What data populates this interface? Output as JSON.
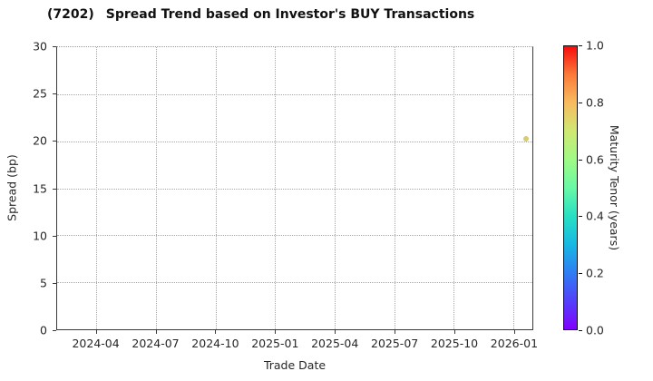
{
  "title": {
    "ticker": "(7202)",
    "text": "Spread Trend based on Investor's BUY Transactions"
  },
  "axes": {
    "x_label": "Trade Date",
    "y_label": "Spread (bp)"
  },
  "colorbar": {
    "label": "Maturity Tenor (years)",
    "colormap": "rainbow",
    "tick_labels": [
      "0.0",
      "0.2",
      "0.4",
      "0.6",
      "0.8",
      "1.0"
    ],
    "gradient_stops": [
      "#8000fe 0%",
      "#5340fb 10%",
      "#2f7ef3 20%",
      "#17b8e2 30%",
      "#27e0c4 40%",
      "#69f9a5 50%",
      "#9ffa85 60%",
      "#cfe873 70%",
      "#f8bc60 80%",
      "#fb7a39 90%",
      "#f60b0c 100%"
    ]
  },
  "chart_data": {
    "type": "scatter",
    "title": "(7202)   Spread Trend based on Investor's BUY Transactions",
    "xlabel": "Trade Date",
    "ylabel": "Spread (bp)",
    "ylim": [
      0,
      30
    ],
    "y_ticks": [
      0,
      5,
      10,
      15,
      20,
      25,
      30
    ],
    "x_ticks": [
      "2024-04",
      "2024-07",
      "2024-10",
      "2025-01",
      "2025-04",
      "2025-07",
      "2025-10",
      "2026-01"
    ],
    "grid": true,
    "legend_position": "colorbar-right",
    "points": [
      {
        "trade_date": "2026-01-20",
        "spread_bp": 20.3,
        "maturity_tenor": 0.7,
        "color": "#d6c96b"
      }
    ],
    "colorbar_range": [
      0.0,
      1.0
    ]
  },
  "colors": {
    "background": "#ffffff",
    "spine": "#3a3a3a",
    "grid": "#a8a8a8",
    "text": "#262626",
    "title_text": "#111111",
    "marker": "#d6c96b"
  }
}
